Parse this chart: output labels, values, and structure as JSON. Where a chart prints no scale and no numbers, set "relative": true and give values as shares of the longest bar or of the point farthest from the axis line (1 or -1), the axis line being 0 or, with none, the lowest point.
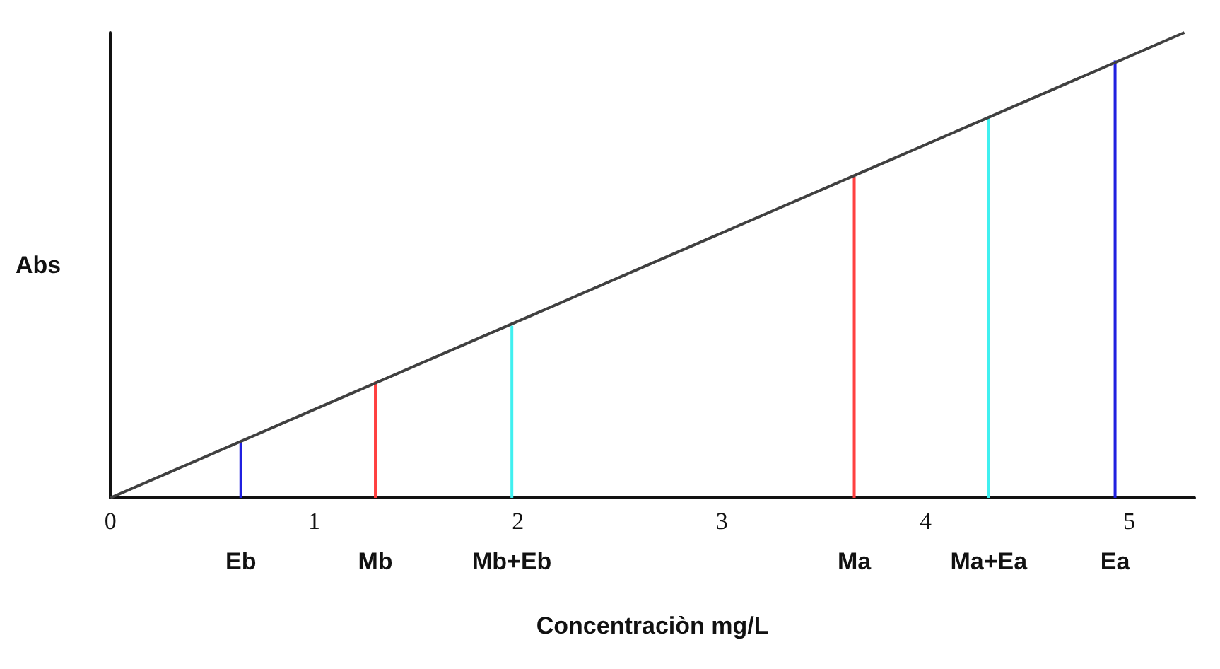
{
  "chart_data": {
    "type": "line",
    "xlabel": "Concentraciòn mg/L",
    "ylabel": "Abs",
    "relative": true,
    "xlim": [
      0,
      5.32
    ],
    "xticks": [
      0,
      1,
      2,
      3,
      4,
      5
    ],
    "grid": false,
    "marker": "none",
    "series": [
      {
        "color": "#404040",
        "x": [
          0,
          5.27
        ],
        "values": [
          0,
          1
        ]
      },
      {
        "type": "bar",
        "x": [
          0.64,
          1.3,
          1.97,
          3.65,
          4.31,
          4.93
        ],
        "values": [
          0.12,
          0.25,
          0.37,
          0.69,
          0.82,
          0.94
        ],
        "colors": [
          "#2020e0",
          "#ff4040",
          "#40f0f0",
          "#ff4040",
          "#40f0f0",
          "#2020e0"
        ]
      }
    ],
    "annotations": [
      {
        "text": "Eb",
        "x": 0.64,
        "y": 0
      },
      {
        "text": "Mb",
        "x": 1.3,
        "y": 0
      },
      {
        "text": "Mb+Eb",
        "x": 1.97,
        "y": 0
      },
      {
        "text": "Ma",
        "x": 3.65,
        "y": 0
      },
      {
        "text": "Ma+Ea",
        "x": 4.31,
        "y": 0
      },
      {
        "text": "Ea",
        "x": 4.93,
        "y": 0
      }
    ]
  }
}
